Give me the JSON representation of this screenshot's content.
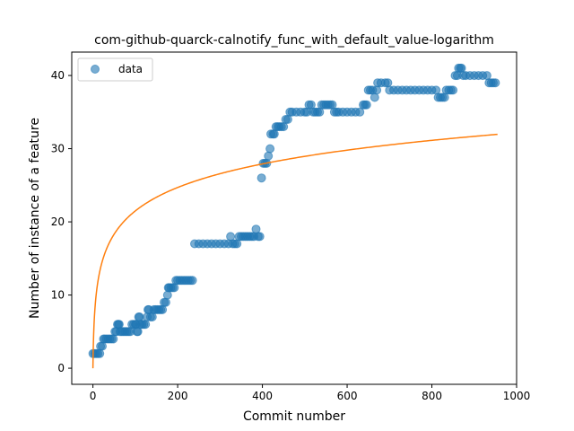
{
  "chart_data": {
    "type": "scatter",
    "title": "com-github-quarck-calnotify_func_with_default_value-logarithm",
    "xlabel": "Commit number",
    "ylabel": "Number of instance of a feature",
    "xlim": [
      -50,
      1000
    ],
    "ylim": [
      -2.2,
      43.2
    ],
    "x_ticks": [
      0,
      200,
      400,
      600,
      800,
      1000
    ],
    "y_ticks": [
      0,
      10,
      20,
      30,
      40
    ],
    "grid": false,
    "legend": {
      "position": "top-left",
      "entries": [
        {
          "label": "data",
          "color": "#1f77b4"
        }
      ]
    },
    "series": [
      {
        "name": "data",
        "kind": "scatter",
        "color": "#1f77b4",
        "points": [
          [
            0,
            2
          ],
          [
            4,
            2
          ],
          [
            8,
            2
          ],
          [
            12,
            2
          ],
          [
            16,
            2
          ],
          [
            18,
            3
          ],
          [
            22,
            3
          ],
          [
            25,
            4
          ],
          [
            28,
            4
          ],
          [
            32,
            4
          ],
          [
            36,
            4
          ],
          [
            40,
            4
          ],
          [
            44,
            4
          ],
          [
            48,
            4
          ],
          [
            52,
            5
          ],
          [
            55,
            5
          ],
          [
            58,
            6
          ],
          [
            60,
            6
          ],
          [
            62,
            6
          ],
          [
            64,
            5
          ],
          [
            68,
            5
          ],
          [
            72,
            5
          ],
          [
            76,
            5
          ],
          [
            80,
            5
          ],
          [
            84,
            5
          ],
          [
            88,
            5
          ],
          [
            92,
            6
          ],
          [
            96,
            6
          ],
          [
            100,
            6
          ],
          [
            102,
            6
          ],
          [
            104,
            5
          ],
          [
            106,
            5
          ],
          [
            108,
            7
          ],
          [
            110,
            7
          ],
          [
            112,
            6
          ],
          [
            116,
            6
          ],
          [
            120,
            6
          ],
          [
            124,
            6
          ],
          [
            128,
            7
          ],
          [
            130,
            8
          ],
          [
            132,
            8
          ],
          [
            136,
            7
          ],
          [
            140,
            7
          ],
          [
            144,
            8
          ],
          [
            148,
            8
          ],
          [
            152,
            8
          ],
          [
            156,
            8
          ],
          [
            160,
            8
          ],
          [
            164,
            8
          ],
          [
            168,
            9
          ],
          [
            172,
            9
          ],
          [
            176,
            10
          ],
          [
            178,
            11
          ],
          [
            180,
            11
          ],
          [
            184,
            11
          ],
          [
            188,
            11
          ],
          [
            192,
            11
          ],
          [
            196,
            12
          ],
          [
            200,
            12
          ],
          [
            205,
            12
          ],
          [
            210,
            12
          ],
          [
            215,
            12
          ],
          [
            220,
            12
          ],
          [
            225,
            12
          ],
          [
            230,
            12
          ],
          [
            235,
            12
          ],
          [
            240,
            17
          ],
          [
            250,
            17
          ],
          [
            260,
            17
          ],
          [
            270,
            17
          ],
          [
            280,
            17
          ],
          [
            290,
            17
          ],
          [
            300,
            17
          ],
          [
            310,
            17
          ],
          [
            320,
            17
          ],
          [
            325,
            18
          ],
          [
            330,
            17
          ],
          [
            335,
            17
          ],
          [
            340,
            17
          ],
          [
            345,
            18
          ],
          [
            350,
            18
          ],
          [
            355,
            18
          ],
          [
            360,
            18
          ],
          [
            365,
            18
          ],
          [
            370,
            18
          ],
          [
            375,
            18
          ],
          [
            380,
            18
          ],
          [
            385,
            19
          ],
          [
            390,
            18
          ],
          [
            394,
            18
          ],
          [
            398,
            26
          ],
          [
            402,
            28
          ],
          [
            406,
            28
          ],
          [
            410,
            28
          ],
          [
            414,
            29
          ],
          [
            418,
            30
          ],
          [
            420,
            32
          ],
          [
            425,
            32
          ],
          [
            428,
            32
          ],
          [
            432,
            33
          ],
          [
            436,
            33
          ],
          [
            440,
            33
          ],
          [
            445,
            33
          ],
          [
            450,
            33
          ],
          [
            455,
            34
          ],
          [
            460,
            34
          ],
          [
            465,
            35
          ],
          [
            470,
            35
          ],
          [
            480,
            35
          ],
          [
            490,
            35
          ],
          [
            500,
            35
          ],
          [
            505,
            35
          ],
          [
            510,
            36
          ],
          [
            515,
            36
          ],
          [
            520,
            35
          ],
          [
            525,
            35
          ],
          [
            530,
            35
          ],
          [
            535,
            35
          ],
          [
            540,
            36
          ],
          [
            545,
            36
          ],
          [
            550,
            36
          ],
          [
            555,
            36
          ],
          [
            560,
            36
          ],
          [
            565,
            36
          ],
          [
            570,
            35
          ],
          [
            575,
            35
          ],
          [
            580,
            35
          ],
          [
            590,
            35
          ],
          [
            600,
            35
          ],
          [
            610,
            35
          ],
          [
            620,
            35
          ],
          [
            630,
            35
          ],
          [
            638,
            36
          ],
          [
            642,
            36
          ],
          [
            646,
            36
          ],
          [
            650,
            38
          ],
          [
            655,
            38
          ],
          [
            660,
            38
          ],
          [
            665,
            37
          ],
          [
            670,
            38
          ],
          [
            672,
            39
          ],
          [
            680,
            39
          ],
          [
            690,
            39
          ],
          [
            696,
            39
          ],
          [
            700,
            38
          ],
          [
            710,
            38
          ],
          [
            720,
            38
          ],
          [
            730,
            38
          ],
          [
            740,
            38
          ],
          [
            750,
            38
          ],
          [
            760,
            38
          ],
          [
            770,
            38
          ],
          [
            780,
            38
          ],
          [
            790,
            38
          ],
          [
            800,
            38
          ],
          [
            810,
            38
          ],
          [
            815,
            37
          ],
          [
            820,
            37
          ],
          [
            825,
            37
          ],
          [
            830,
            37
          ],
          [
            834,
            38
          ],
          [
            840,
            38
          ],
          [
            845,
            38
          ],
          [
            850,
            38
          ],
          [
            855,
            40
          ],
          [
            860,
            40
          ],
          [
            863,
            41
          ],
          [
            867,
            41
          ],
          [
            870,
            41
          ],
          [
            874,
            40
          ],
          [
            880,
            40
          ],
          [
            890,
            40
          ],
          [
            900,
            40
          ],
          [
            910,
            40
          ],
          [
            920,
            40
          ],
          [
            930,
            40
          ],
          [
            935,
            39
          ],
          [
            940,
            39
          ],
          [
            945,
            39
          ],
          [
            950,
            39
          ]
        ]
      },
      {
        "name": "",
        "kind": "line",
        "color": "#ff7f0e",
        "function": "a*ln(1+x)",
        "a": 4.657,
        "x_range": [
          0,
          955
        ]
      }
    ]
  }
}
